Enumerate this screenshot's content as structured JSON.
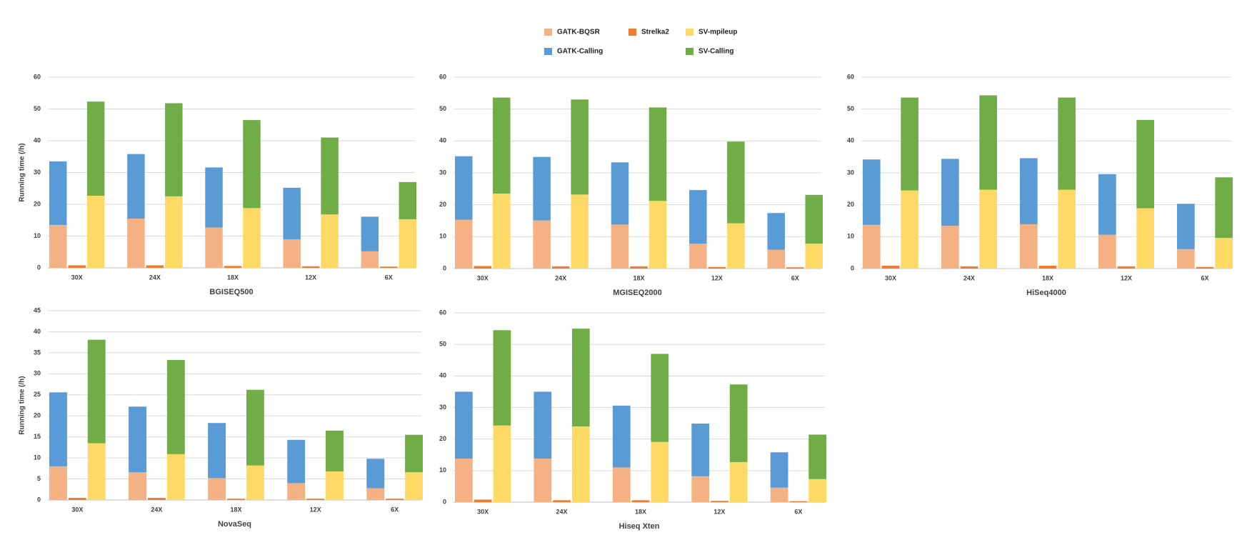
{
  "chart_data": [
    {
      "type": "bar",
      "title": "BGISEQ500",
      "ylabel": "Running time (/h)",
      "categories": [
        "30X",
        "24X",
        "18X",
        "12X",
        "6X"
      ],
      "ylim": [
        0,
        60
      ],
      "yticks": [
        0,
        10,
        20,
        30,
        40,
        50,
        60
      ],
      "grid": true,
      "series": [
        {
          "name": "GATK-BQSR",
          "color": "#f4b183",
          "stack": 0,
          "values": [
            13.5,
            15.5,
            12.7,
            9,
            5.2
          ]
        },
        {
          "name": "GATK-Calling",
          "color": "#5b9bd5",
          "stack": 0,
          "values": [
            20,
            20.3,
            18.9,
            16.2,
            10.9
          ]
        },
        {
          "name": "Strelka2",
          "color": "#ed7d31",
          "stack": 1,
          "values": [
            0.8,
            0.8,
            0.6,
            0.5,
            0.4
          ]
        },
        {
          "name": "SV-mpileup",
          "color": "#ffd966",
          "stack": 2,
          "values": [
            22.7,
            22.5,
            18.8,
            16.8,
            15.3
          ]
        },
        {
          "name": "SV-Calling",
          "color": "#70ad47",
          "stack": 2,
          "values": [
            29.6,
            29.3,
            27.7,
            24.2,
            11.7
          ]
        }
      ]
    },
    {
      "type": "bar",
      "title": "MGISEQ2000",
      "categories": [
        "30X",
        "24X",
        "18X",
        "12X",
        "6X"
      ],
      "ylim": [
        0,
        60
      ],
      "yticks": [
        0,
        10,
        20,
        30,
        40,
        50,
        60
      ],
      "grid": true,
      "series": [
        {
          "name": "GATK-BQSR",
          "color": "#f4b183",
          "stack": 0,
          "values": [
            15.3,
            15.1,
            13.8,
            7.8,
            5.9
          ]
        },
        {
          "name": "GATK-Calling",
          "color": "#5b9bd5",
          "stack": 0,
          "values": [
            19.9,
            19.9,
            19.5,
            16.8,
            11.5
          ]
        },
        {
          "name": "Strelka2",
          "color": "#ed7d31",
          "stack": 1,
          "values": [
            0.8,
            0.7,
            0.7,
            0.5,
            0.4
          ]
        },
        {
          "name": "SV-mpileup",
          "color": "#ffd966",
          "stack": 2,
          "values": [
            23.5,
            23.2,
            21.2,
            14.2,
            7.8
          ]
        },
        {
          "name": "SV-Calling",
          "color": "#70ad47",
          "stack": 2,
          "values": [
            30.1,
            29.8,
            29.3,
            25.6,
            15.3
          ]
        }
      ]
    },
    {
      "type": "bar",
      "title": "HiSeq4000",
      "categories": [
        "30X",
        "24X",
        "18X",
        "12X",
        "6X"
      ],
      "ylim": [
        0,
        60
      ],
      "yticks": [
        0,
        10,
        20,
        30,
        40,
        50,
        60
      ],
      "grid": true,
      "series": [
        {
          "name": "GATK-BQSR",
          "color": "#f4b183",
          "stack": 0,
          "values": [
            13.7,
            13.4,
            13.9,
            10.6,
            6.1
          ]
        },
        {
          "name": "GATK-Calling",
          "color": "#5b9bd5",
          "stack": 0,
          "values": [
            20.5,
            21,
            20.7,
            19,
            14.2
          ]
        },
        {
          "name": "Strelka2",
          "color": "#ed7d31",
          "stack": 1,
          "values": [
            0.9,
            0.7,
            0.9,
            0.7,
            0.5
          ]
        },
        {
          "name": "SV-mpileup",
          "color": "#ffd966",
          "stack": 2,
          "values": [
            24.5,
            24.7,
            24.7,
            18.9,
            9.6
          ]
        },
        {
          "name": "SV-Calling",
          "color": "#70ad47",
          "stack": 2,
          "values": [
            29.1,
            29.6,
            28.9,
            27.7,
            19
          ]
        }
      ]
    },
    {
      "type": "bar",
      "title": "NovaSeq",
      "ylabel": "Running time (/h)",
      "categories": [
        "30X",
        "24X",
        "18X",
        "12X",
        "6X"
      ],
      "ylim": [
        0,
        45
      ],
      "yticks": [
        0,
        5,
        10,
        15,
        20,
        25,
        30,
        35,
        40,
        45
      ],
      "grid": true,
      "series": [
        {
          "name": "GATK-BQSR",
          "color": "#f4b183",
          "stack": 0,
          "values": [
            8,
            6.6,
            5.2,
            4,
            2.8
          ]
        },
        {
          "name": "GATK-Calling",
          "color": "#5b9bd5",
          "stack": 0,
          "values": [
            17.6,
            15.6,
            13.1,
            10.3,
            7
          ]
        },
        {
          "name": "Strelka2",
          "color": "#ed7d31",
          "stack": 1,
          "values": [
            0.5,
            0.5,
            0.3,
            0.3,
            0.3
          ]
        },
        {
          "name": "SV-mpileup",
          "color": "#ffd966",
          "stack": 2,
          "values": [
            13.5,
            10.9,
            8.2,
            6.8,
            6.6
          ]
        },
        {
          "name": "SV-Calling",
          "color": "#70ad47",
          "stack": 2,
          "values": [
            24.6,
            22.4,
            18,
            9.7,
            8.9
          ]
        }
      ]
    },
    {
      "type": "bar",
      "title": "Hiseq Xten",
      "categories": [
        "30X",
        "24X",
        "18X",
        "12X",
        "6X"
      ],
      "ylim": [
        0,
        60
      ],
      "yticks": [
        0,
        10,
        20,
        30,
        40,
        50,
        60
      ],
      "grid": true,
      "series": [
        {
          "name": "GATK-BQSR",
          "color": "#f4b183",
          "stack": 0,
          "values": [
            13.8,
            13.8,
            11,
            8.2,
            4.6
          ]
        },
        {
          "name": "GATK-Calling",
          "color": "#5b9bd5",
          "stack": 0,
          "values": [
            21.2,
            21.2,
            19.6,
            16.7,
            11.2
          ]
        },
        {
          "name": "Strelka2",
          "color": "#ed7d31",
          "stack": 1,
          "values": [
            0.8,
            0.6,
            0.6,
            0.4,
            0.3
          ]
        },
        {
          "name": "SV-mpileup",
          "color": "#ffd966",
          "stack": 2,
          "values": [
            24.3,
            24,
            19.1,
            12.7,
            7.3
          ]
        },
        {
          "name": "SV-Calling",
          "color": "#70ad47",
          "stack": 2,
          "values": [
            30.2,
            31,
            27.9,
            24.6,
            14.1
          ]
        }
      ]
    }
  ]
}
